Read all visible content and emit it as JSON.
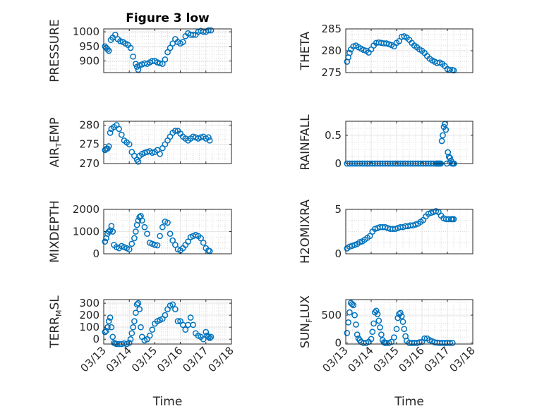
{
  "title": "Figure 3 low",
  "colors": {
    "marker": "#0072BD",
    "axis": "#262626",
    "grid": "#dcdcdc"
  },
  "chart_data": [
    {
      "type": "scatter",
      "name": "pressure",
      "ylabel": "PRESSURE",
      "ylabel_sub": "",
      "ylabel_tail": "",
      "title": "Figure 3 low",
      "ylim": [
        860,
        1010
      ],
      "yticks": [
        900,
        950,
        1000
      ],
      "xlim": [
        0,
        5
      ],
      "xticklabels": [],
      "xlabel": "",
      "x": [
        0.05,
        0.1,
        0.15,
        0.2,
        0.28,
        0.35,
        0.45,
        0.55,
        0.65,
        0.75,
        0.85,
        0.95,
        1.05,
        1.15,
        1.25,
        1.3,
        1.35,
        1.4,
        1.5,
        1.6,
        1.7,
        1.8,
        1.9,
        2.0,
        2.1,
        2.2,
        2.3,
        2.4,
        2.5,
        2.6,
        2.7,
        2.8,
        2.9,
        3.0,
        3.1,
        3.2,
        3.3,
        3.4,
        3.5,
        3.6,
        3.7,
        3.8,
        3.9,
        4.0,
        4.1,
        4.2
      ],
      "y": [
        950,
        945,
        940,
        935,
        972,
        980,
        990,
        975,
        968,
        965,
        960,
        955,
        945,
        915,
        890,
        880,
        870,
        885,
        888,
        892,
        890,
        895,
        900,
        900,
        895,
        892,
        890,
        905,
        930,
        945,
        960,
        975,
        965,
        960,
        965,
        985,
        995,
        990,
        990,
        990,
        1000,
        1003,
        1000,
        1000,
        1005,
        1005
      ]
    },
    {
      "type": "scatter",
      "name": "theta",
      "ylabel": "THETA",
      "ylabel_sub": "",
      "ylabel_tail": "",
      "title": "",
      "ylim": [
        275,
        285
      ],
      "yticks": [
        275,
        280,
        285
      ],
      "xlim": [
        0,
        5
      ],
      "xticklabels": [],
      "xlabel": "",
      "x": [
        0.05,
        0.1,
        0.15,
        0.2,
        0.3,
        0.4,
        0.5,
        0.6,
        0.7,
        0.8,
        0.9,
        1.0,
        1.1,
        1.2,
        1.3,
        1.4,
        1.5,
        1.6,
        1.7,
        1.8,
        1.9,
        2.0,
        2.1,
        2.2,
        2.3,
        2.4,
        2.5,
        2.6,
        2.7,
        2.8,
        2.9,
        3.0,
        3.1,
        3.2,
        3.3,
        3.4,
        3.5,
        3.6,
        3.7,
        3.8,
        3.9,
        4.0,
        4.1,
        4.2,
        4.25
      ],
      "y": [
        277.5,
        278.5,
        279.5,
        280.3,
        281.0,
        281.2,
        280.8,
        280.5,
        280.2,
        280.0,
        279.6,
        280.3,
        281.2,
        281.8,
        281.9,
        281.8,
        281.7,
        281.7,
        281.5,
        281.3,
        281.0,
        281.8,
        282.2,
        283.2,
        283.3,
        283.0,
        282.5,
        281.8,
        281.2,
        280.8,
        280.3,
        280.0,
        279.5,
        278.8,
        278.2,
        277.8,
        277.5,
        277.2,
        277.3,
        277.0,
        276.5,
        275.8,
        275.6,
        275.6,
        275.5
      ]
    },
    {
      "type": "scatter",
      "name": "air_temp",
      "ylabel": "AIR",
      "ylabel_sub": "T",
      "ylabel_tail": "EMP",
      "title": "",
      "ylim": [
        270,
        281
      ],
      "yticks": [
        270,
        275,
        280
      ],
      "xlim": [
        0,
        5
      ],
      "xticklabels": [],
      "xlabel": "",
      "x": [
        0.05,
        0.1,
        0.15,
        0.2,
        0.25,
        0.3,
        0.4,
        0.5,
        0.6,
        0.7,
        0.8,
        0.9,
        1.0,
        1.1,
        1.2,
        1.3,
        1.35,
        1.4,
        1.5,
        1.6,
        1.7,
        1.8,
        1.9,
        2.0,
        2.1,
        2.2,
        2.3,
        2.4,
        2.5,
        2.6,
        2.7,
        2.8,
        2.9,
        3.0,
        3.1,
        3.2,
        3.3,
        3.4,
        3.5,
        3.6,
        3.7,
        3.8,
        3.9,
        4.0,
        4.1,
        4.15
      ],
      "y": [
        273.5,
        273.8,
        273.9,
        274.5,
        278.0,
        279.0,
        279.5,
        280.0,
        279.0,
        277.5,
        276.0,
        275.5,
        275.0,
        273.0,
        272.0,
        271.0,
        270.5,
        272.0,
        272.5,
        272.8,
        273.0,
        273.2,
        272.8,
        273.0,
        273.5,
        272.5,
        274.0,
        275.0,
        276.0,
        277.0,
        278.0,
        278.5,
        278.5,
        277.8,
        277.0,
        276.5,
        276.0,
        276.5,
        277.0,
        276.8,
        276.5,
        276.8,
        277.0,
        276.5,
        276.8,
        276.0
      ]
    },
    {
      "type": "scatter",
      "name": "rainfall",
      "ylabel": "RAINFALL",
      "ylabel_sub": "",
      "ylabel_tail": "",
      "title": "",
      "ylim": [
        0,
        0.75
      ],
      "yticks": [
        0,
        0.5
      ],
      "yticklabels": [
        "0",
        "0.5"
      ],
      "xlim": [
        0,
        5
      ],
      "xticklabels": [],
      "xlabel": "",
      "x": [
        0.05,
        0.15,
        0.25,
        0.35,
        0.45,
        0.55,
        0.65,
        0.75,
        0.85,
        0.95,
        1.05,
        1.15,
        1.25,
        1.35,
        1.45,
        1.55,
        1.65,
        1.75,
        1.85,
        1.95,
        2.05,
        2.15,
        2.25,
        2.35,
        2.45,
        2.55,
        2.65,
        2.75,
        2.85,
        2.95,
        3.05,
        3.15,
        3.25,
        3.35,
        3.45,
        3.55,
        3.58,
        3.62,
        3.66,
        3.7,
        3.74,
        3.78,
        3.82,
        3.86,
        3.9,
        3.94,
        3.98,
        4.02,
        4.06,
        4.1,
        4.14,
        4.18,
        4.22,
        4.26
      ],
      "y": [
        0,
        0,
        0,
        0,
        0,
        0,
        0,
        0,
        0,
        0,
        0,
        0,
        0,
        0,
        0,
        0,
        0,
        0,
        0,
        0,
        0,
        0,
        0,
        0,
        0,
        0,
        0,
        0,
        0,
        0,
        0,
        0,
        0,
        0,
        0,
        0,
        0,
        0,
        0,
        0,
        0,
        0.4,
        0.5,
        0.65,
        0.7,
        0.6,
        0.0,
        0.2,
        0.12,
        0.1,
        0.05,
        0,
        0,
        0
      ]
    },
    {
      "type": "scatter",
      "name": "mixdepth",
      "ylabel": "MIXDEPTH",
      "ylabel_sub": "",
      "ylabel_tail": "",
      "title": "",
      "ylim": [
        0,
        2000
      ],
      "yticks": [
        0,
        1000,
        2000
      ],
      "xlim": [
        0,
        5
      ],
      "xticklabels": [],
      "xlabel": "",
      "x": [
        0.05,
        0.1,
        0.15,
        0.2,
        0.25,
        0.3,
        0.35,
        0.4,
        0.5,
        0.6,
        0.7,
        0.8,
        0.9,
        1.0,
        1.1,
        1.2,
        1.25,
        1.3,
        1.35,
        1.4,
        1.45,
        1.5,
        1.6,
        1.7,
        1.8,
        1.9,
        2.0,
        2.1,
        2.2,
        2.3,
        2.4,
        2.5,
        2.6,
        2.7,
        2.8,
        2.9,
        3.0,
        3.1,
        3.2,
        3.3,
        3.4,
        3.5,
        3.6,
        3.7,
        3.8,
        3.9,
        4.0,
        4.1,
        4.15
      ],
      "y": [
        550,
        700,
        900,
        1000,
        1050,
        1250,
        1000,
        400,
        300,
        250,
        350,
        300,
        250,
        200,
        450,
        700,
        1000,
        1300,
        1500,
        1650,
        1700,
        1500,
        1200,
        900,
        500,
        450,
        400,
        380,
        800,
        1200,
        1450,
        1400,
        900,
        600,
        400,
        200,
        150,
        250,
        400,
        550,
        750,
        800,
        850,
        800,
        700,
        500,
        250,
        150,
        120
      ]
    },
    {
      "type": "scatter",
      "name": "h2omixra",
      "ylabel": "H2OMIXRA",
      "ylabel_sub": "",
      "ylabel_tail": "",
      "title": "",
      "ylim": [
        0,
        5
      ],
      "yticks": [
        0,
        5
      ],
      "xlim": [
        0,
        5
      ],
      "xticklabels": [],
      "xlabel": "",
      "x": [
        0.05,
        0.15,
        0.25,
        0.35,
        0.45,
        0.55,
        0.65,
        0.75,
        0.85,
        0.95,
        1.05,
        1.15,
        1.25,
        1.35,
        1.45,
        1.55,
        1.65,
        1.75,
        1.85,
        1.95,
        2.05,
        2.15,
        2.25,
        2.35,
        2.45,
        2.55,
        2.65,
        2.75,
        2.85,
        2.95,
        3.05,
        3.15,
        3.25,
        3.35,
        3.45,
        3.55,
        3.65,
        3.75,
        3.85,
        3.95,
        4.05,
        4.15,
        4.2,
        4.25
      ],
      "y": [
        0.6,
        0.8,
        0.9,
        1.0,
        1.1,
        1.3,
        1.4,
        1.6,
        1.8,
        2.0,
        2.5,
        2.8,
        2.9,
        3.0,
        3.0,
        3.0,
        2.9,
        2.8,
        2.8,
        2.8,
        2.9,
        3.0,
        3.0,
        3.1,
        3.1,
        3.2,
        3.2,
        3.3,
        3.4,
        3.6,
        3.8,
        4.2,
        4.5,
        4.6,
        4.7,
        4.8,
        4.7,
        4.3,
        4.0,
        3.9,
        3.9,
        3.9,
        3.9,
        3.9
      ]
    },
    {
      "type": "scatter",
      "name": "terr_msl",
      "ylabel": "TERR",
      "ylabel_sub": "M",
      "ylabel_tail": "SL",
      "title": "",
      "ylim": [
        -40,
        330
      ],
      "yticks": [
        0,
        100,
        200,
        300
      ],
      "xlim": [
        0,
        5
      ],
      "xticklabels": [
        "03/13",
        "03/14",
        "03/15",
        "03/16",
        "03/17",
        "03/18"
      ],
      "xlabel": "Time",
      "x": [
        0.05,
        0.1,
        0.15,
        0.2,
        0.25,
        0.3,
        0.35,
        0.4,
        0.45,
        0.5,
        0.6,
        0.7,
        0.8,
        0.9,
        1.0,
        1.05,
        1.1,
        1.15,
        1.2,
        1.25,
        1.3,
        1.35,
        1.4,
        1.45,
        1.5,
        1.6,
        1.7,
        1.8,
        1.9,
        2.0,
        2.1,
        2.2,
        2.3,
        2.4,
        2.5,
        2.6,
        2.7,
        2.8,
        2.9,
        3.0,
        3.1,
        3.2,
        3.3,
        3.4,
        3.5,
        3.6,
        3.7,
        3.8,
        3.9,
        4.0,
        4.05,
        4.1,
        4.15,
        4.2
      ],
      "y": [
        60,
        70,
        100,
        150,
        180,
        100,
        20,
        -30,
        -35,
        -40,
        -40,
        -40,
        -35,
        -40,
        -30,
        0,
        50,
        100,
        150,
        220,
        290,
        300,
        250,
        100,
        20,
        -10,
        0,
        30,
        80,
        130,
        150,
        160,
        170,
        200,
        250,
        280,
        290,
        250,
        150,
        150,
        120,
        80,
        120,
        180,
        120,
        50,
        30,
        20,
        0,
        60,
        30,
        20,
        10,
        20
      ]
    },
    {
      "type": "scatter",
      "name": "sun_flux",
      "ylabel": "SUN",
      "ylabel_sub": "F",
      "ylabel_tail": "LUX",
      "title": "",
      "ylim": [
        -20,
        780
      ],
      "yticks": [
        0,
        500
      ],
      "xlim": [
        0,
        5
      ],
      "xticklabels": [
        "03/13",
        "03/14",
        "03/15",
        "03/16",
        "03/17",
        "03/18"
      ],
      "xlabel": "Time",
      "x": [
        0.05,
        0.1,
        0.15,
        0.2,
        0.25,
        0.3,
        0.35,
        0.4,
        0.45,
        0.5,
        0.55,
        0.6,
        0.7,
        0.8,
        0.9,
        1.0,
        1.05,
        1.1,
        1.15,
        1.2,
        1.25,
        1.3,
        1.35,
        1.4,
        1.45,
        1.5,
        1.55,
        1.6,
        1.7,
        1.8,
        1.9,
        2.0,
        2.05,
        2.1,
        2.15,
        2.2,
        2.25,
        2.3,
        2.35,
        2.4,
        2.5,
        2.6,
        2.7,
        2.8,
        2.9,
        3.0,
        3.1,
        3.2,
        3.3,
        3.4,
        3.5,
        3.6,
        3.7,
        3.8,
        3.9,
        4.0,
        4.1,
        4.2
      ],
      "y": [
        180,
        370,
        550,
        720,
        700,
        680,
        500,
        330,
        150,
        80,
        50,
        20,
        0,
        0,
        20,
        70,
        200,
        350,
        550,
        580,
        520,
        400,
        280,
        150,
        50,
        10,
        0,
        0,
        0,
        20,
        100,
        250,
        450,
        520,
        540,
        480,
        380,
        250,
        120,
        40,
        0,
        0,
        0,
        0,
        10,
        20,
        80,
        80,
        50,
        30,
        10,
        5,
        0,
        0,
        0,
        0,
        0,
        0
      ]
    }
  ]
}
